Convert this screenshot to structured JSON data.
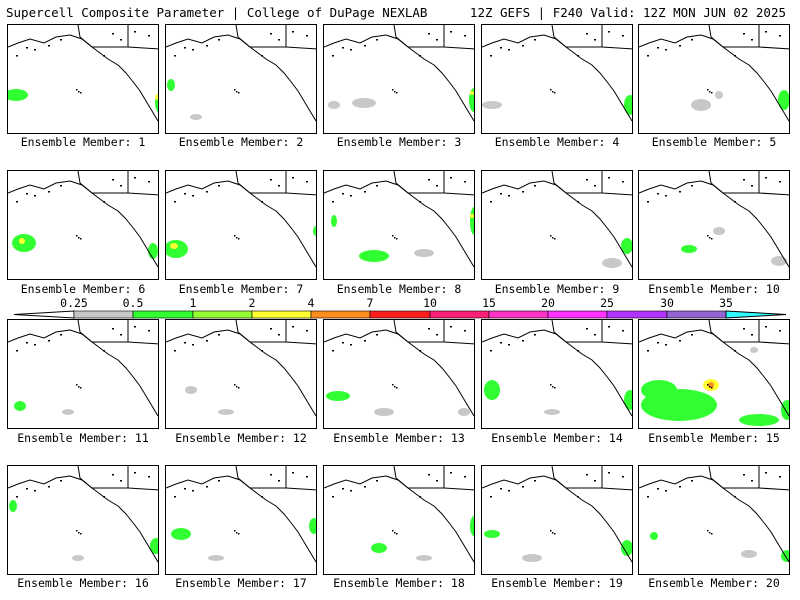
{
  "header": {
    "left": "Supercell Composite Parameter | College of DuPage NEXLAB",
    "right": "12Z GEFS | F240 Valid: 12Z MON JUN 02 2025"
  },
  "colorbar": {
    "ticks": [
      "0.25",
      "0.5",
      "1",
      "2",
      "4",
      "7",
      "10",
      "15",
      "20",
      "25",
      "30",
      "35"
    ],
    "colors": [
      "#c8c8c8",
      "#32ff32",
      "#96ff32",
      "#ffff32",
      "#ff8c1e",
      "#ff1e1e",
      "#ff1e78",
      "#ff32c8",
      "#ff32ff",
      "#b432ff",
      "#9664d2",
      "#32ffff"
    ]
  },
  "members": [
    {
      "label": "Ensemble Member: 1",
      "blobs": [
        [
          8,
          70,
          12,
          6,
          "g"
        ],
        [
          152,
          78,
          5,
          10,
          "g"
        ],
        [
          150,
          72,
          3,
          3,
          "y"
        ]
      ]
    },
    {
      "label": "Ensemble Member: 2",
      "blobs": [
        [
          5,
          60,
          4,
          6,
          "g"
        ],
        [
          160,
          102,
          5,
          4,
          "s"
        ],
        [
          30,
          92,
          6,
          3,
          "s"
        ]
      ]
    },
    {
      "label": "Ensemble Member: 3",
      "blobs": [
        [
          40,
          78,
          12,
          5,
          "s"
        ],
        [
          150,
          75,
          5,
          12,
          "g"
        ],
        [
          10,
          80,
          6,
          4,
          "s"
        ],
        [
          148,
          68,
          2,
          2,
          "y"
        ]
      ]
    },
    {
      "label": "Ensemble Member: 4",
      "blobs": [
        [
          10,
          80,
          10,
          4,
          "s"
        ],
        [
          148,
          80,
          6,
          10,
          "g"
        ]
      ]
    },
    {
      "label": "Ensemble Member: 5",
      "blobs": [
        [
          62,
          80,
          10,
          6,
          "s"
        ],
        [
          145,
          75,
          6,
          10,
          "g"
        ],
        [
          80,
          70,
          4,
          4,
          "s"
        ]
      ]
    },
    {
      "label": "Ensemble Member: 6",
      "blobs": [
        [
          16,
          72,
          12,
          9,
          "g"
        ],
        [
          145,
          80,
          5,
          8,
          "g"
        ],
        [
          14,
          70,
          3,
          3,
          "y"
        ]
      ]
    },
    {
      "label": "Ensemble Member: 7",
      "blobs": [
        [
          10,
          78,
          12,
          9,
          "g"
        ],
        [
          8,
          75,
          4,
          3,
          "y"
        ],
        [
          150,
          60,
          3,
          5,
          "g"
        ]
      ]
    },
    {
      "label": "Ensemble Member: 8",
      "blobs": [
        [
          50,
          85,
          15,
          6,
          "g"
        ],
        [
          150,
          50,
          4,
          14,
          "g"
        ],
        [
          100,
          82,
          10,
          4,
          "s"
        ],
        [
          10,
          50,
          3,
          6,
          "g"
        ],
        [
          148,
          45,
          2,
          2,
          "y"
        ]
      ]
    },
    {
      "label": "Ensemble Member: 9",
      "blobs": [
        [
          130,
          92,
          10,
          5,
          "s"
        ],
        [
          145,
          75,
          6,
          8,
          "g"
        ]
      ]
    },
    {
      "label": "Ensemble Member: 10",
      "blobs": [
        [
          50,
          78,
          8,
          4,
          "g"
        ],
        [
          80,
          60,
          6,
          4,
          "s"
        ],
        [
          140,
          90,
          8,
          5,
          "s"
        ]
      ]
    },
    {
      "label": "Ensemble Member: 11",
      "blobs": [
        [
          12,
          86,
          6,
          5,
          "g"
        ],
        [
          60,
          92,
          6,
          3,
          "s"
        ]
      ]
    },
    {
      "label": "Ensemble Member: 12",
      "blobs": [
        [
          25,
          70,
          6,
          4,
          "s"
        ],
        [
          60,
          92,
          8,
          3,
          "s"
        ]
      ]
    },
    {
      "label": "Ensemble Member: 13",
      "blobs": [
        [
          14,
          76,
          12,
          5,
          "g"
        ],
        [
          60,
          92,
          10,
          4,
          "s"
        ],
        [
          140,
          92,
          6,
          4,
          "s"
        ]
      ]
    },
    {
      "label": "Ensemble Member: 14",
      "blobs": [
        [
          10,
          70,
          8,
          10,
          "g"
        ],
        [
          148,
          80,
          6,
          10,
          "g"
        ],
        [
          70,
          92,
          8,
          3,
          "s"
        ]
      ]
    },
    {
      "label": "Ensemble Member: 15",
      "blobs": [
        [
          40,
          85,
          38,
          16,
          "g"
        ],
        [
          20,
          70,
          18,
          10,
          "g"
        ],
        [
          72,
          65,
          8,
          6,
          "y"
        ],
        [
          72,
          65,
          3,
          3,
          "o"
        ],
        [
          120,
          100,
          20,
          6,
          "g"
        ],
        [
          148,
          90,
          6,
          10,
          "g"
        ],
        [
          115,
          30,
          4,
          3,
          "s"
        ]
      ]
    },
    {
      "label": "Ensemble Member: 16",
      "blobs": [
        [
          5,
          40,
          4,
          6,
          "g"
        ],
        [
          148,
          80,
          6,
          8,
          "g"
        ],
        [
          70,
          92,
          6,
          3,
          "s"
        ]
      ]
    },
    {
      "label": "Ensemble Member: 17",
      "blobs": [
        [
          15,
          68,
          10,
          6,
          "g"
        ],
        [
          148,
          60,
          5,
          8,
          "g"
        ],
        [
          50,
          92,
          8,
          3,
          "s"
        ]
      ]
    },
    {
      "label": "Ensemble Member: 18",
      "blobs": [
        [
          55,
          82,
          8,
          5,
          "g"
        ],
        [
          150,
          60,
          4,
          10,
          "g"
        ],
        [
          100,
          92,
          8,
          3,
          "s"
        ]
      ]
    },
    {
      "label": "Ensemble Member: 19",
      "blobs": [
        [
          10,
          68,
          8,
          4,
          "g"
        ],
        [
          145,
          82,
          6,
          8,
          "g"
        ],
        [
          50,
          92,
          10,
          4,
          "s"
        ]
      ]
    },
    {
      "label": "Ensemble Member: 20",
      "blobs": [
        [
          15,
          70,
          4,
          4,
          "g"
        ],
        [
          148,
          90,
          6,
          6,
          "g"
        ],
        [
          110,
          88,
          8,
          4,
          "s"
        ]
      ]
    }
  ]
}
